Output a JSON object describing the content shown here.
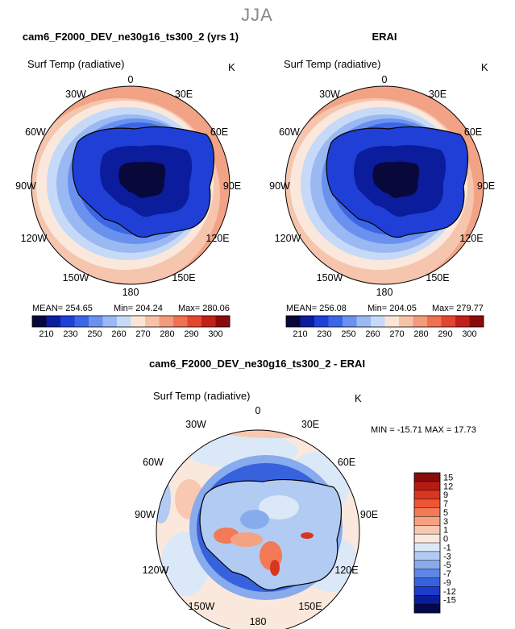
{
  "figure": {
    "suptitle": "JJA",
    "panels": [
      {
        "title": "cam6_F2000_DEV_ne30g16_ts300_2 (yrs 1)",
        "var_label": "Surf Temp (radiative)",
        "units": "K",
        "stats": {
          "mean": "MEAN= 254.65",
          "min": "Min= 204.24",
          "max": "Max= 280.06"
        }
      },
      {
        "title": "ERAI",
        "var_label": "Surf Temp (radiative)",
        "units": "K",
        "stats": {
          "mean": "MEAN= 256.08",
          "min": "Min= 204.05",
          "max": "Max= 279.77"
        }
      }
    ],
    "diff_panel": {
      "title": "cam6_F2000_DEV_ne30g16_ts300_2 - ERAI",
      "var_label": "Surf Temp (radiative)",
      "units": "K",
      "stats_text": "MIN = -15.71  MAX =  17.73"
    },
    "lon_labels": [
      "0",
      "30E",
      "60E",
      "90E",
      "120E",
      "150E",
      "180",
      "150W",
      "120W",
      "90W",
      "60W",
      "30W"
    ],
    "abs_colorbar": {
      "ticks": [
        "210",
        "230",
        "250",
        "260",
        "270",
        "280",
        "290",
        "300"
      ],
      "colors": [
        "#08083a",
        "#0b1c9c",
        "#1f3fd6",
        "#3b67e6",
        "#6a91ee",
        "#9ab9f3",
        "#c6daf8",
        "#fbe6d6",
        "#f6c2a7",
        "#f29a7b",
        "#ee7152",
        "#e2462f",
        "#c21f1a",
        "#8a0b0b"
      ]
    },
    "diff_colorbar": {
      "ticks": [
        "15",
        "12",
        "9",
        "7",
        "5",
        "3",
        "1",
        "0",
        "-1",
        "-3",
        "-5",
        "-7",
        "-9",
        "-12",
        "-15"
      ],
      "colors": [
        "#8a0b0b",
        "#b81a14",
        "#d93620",
        "#ee5633",
        "#f27a57",
        "#f5a283",
        "#f8c9b0",
        "#fbe8dc",
        "#dbe8f8",
        "#b2cbf3",
        "#88abee",
        "#5d86e7",
        "#3762dd",
        "#1b3bc8",
        "#0a1d98",
        "#05084f"
      ]
    },
    "colors": {
      "ocean_warm": "#f2a386",
      "ocean_edge": "#ef8c68",
      "ice_deep": "#0a1c9a",
      "coast": "#000000"
    }
  }
}
